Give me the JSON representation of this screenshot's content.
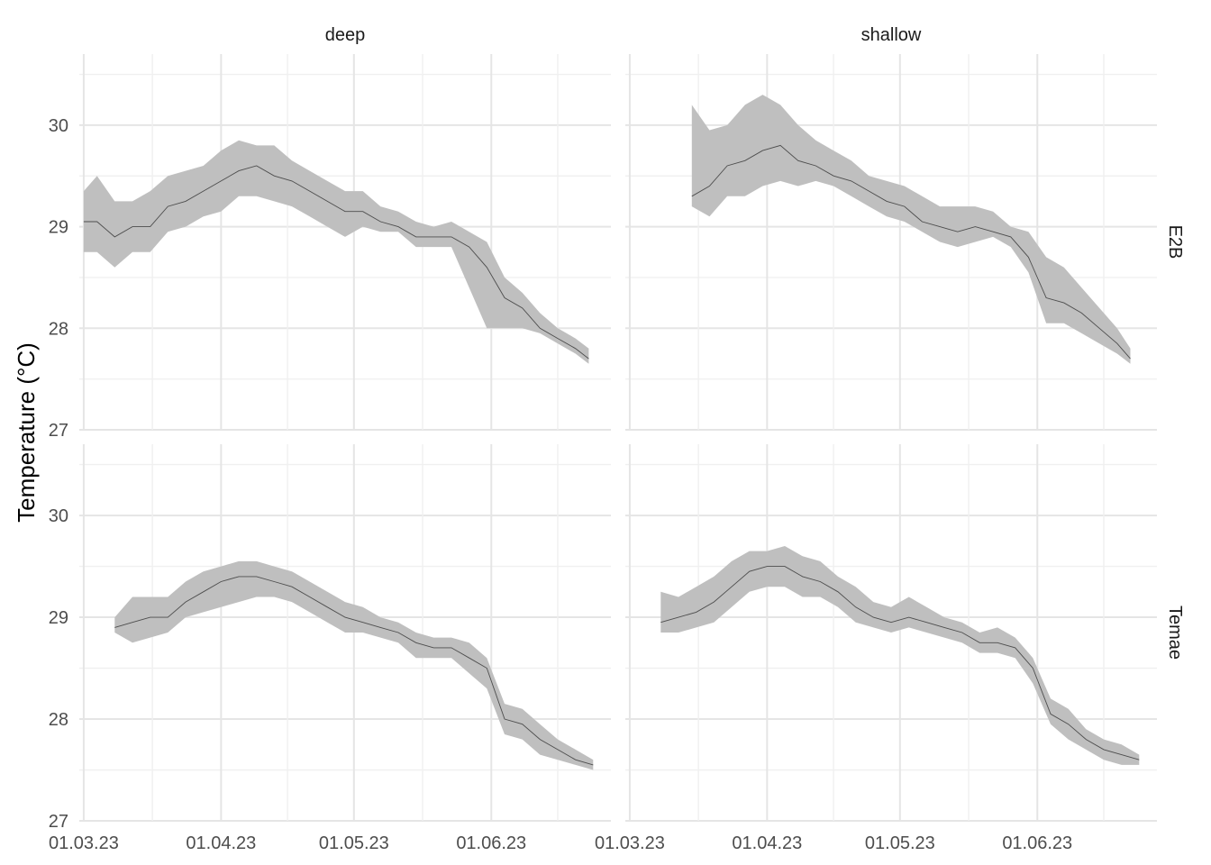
{
  "chart_data": {
    "type": "area",
    "ylabel": "Temperature (°C)",
    "xlabel": "",
    "x_ticks": [
      "2023-03-01",
      "2023-04-01",
      "2023-05-01",
      "2023-06-01"
    ],
    "x_tick_labels": [
      "01.03.23",
      "01.04.23",
      "01.05.23",
      "01.06.23"
    ],
    "x_range": [
      "2023-02-28",
      "2023-06-28"
    ],
    "y_ticks": [
      27,
      28,
      29,
      30
    ],
    "y_range": [
      27,
      30.7
    ],
    "grid": true,
    "colors": {
      "ribbon": "#bfbfbf",
      "line": "#4d4d4d"
    },
    "facet_columns": [
      "deep",
      "shallow"
    ],
    "facet_rows": [
      "E2B",
      "Temae"
    ],
    "panels": [
      {
        "row": "E2B",
        "col": "deep",
        "points": [
          [
            "2023-03-01",
            29.05,
            28.75,
            29.35
          ],
          [
            "2023-03-04",
            29.05,
            28.75,
            29.5
          ],
          [
            "2023-03-08",
            28.9,
            28.6,
            29.25
          ],
          [
            "2023-03-12",
            29.0,
            28.75,
            29.25
          ],
          [
            "2023-03-16",
            29.0,
            28.75,
            29.35
          ],
          [
            "2023-03-20",
            29.2,
            28.95,
            29.5
          ],
          [
            "2023-03-24",
            29.25,
            29.0,
            29.55
          ],
          [
            "2023-03-28",
            29.35,
            29.1,
            29.6
          ],
          [
            "2023-04-01",
            29.45,
            29.15,
            29.75
          ],
          [
            "2023-04-05",
            29.55,
            29.3,
            29.85
          ],
          [
            "2023-04-09",
            29.6,
            29.3,
            29.8
          ],
          [
            "2023-04-13",
            29.5,
            29.25,
            29.8
          ],
          [
            "2023-04-17",
            29.45,
            29.2,
            29.65
          ],
          [
            "2023-04-21",
            29.35,
            29.1,
            29.55
          ],
          [
            "2023-04-25",
            29.25,
            29.0,
            29.45
          ],
          [
            "2023-04-29",
            29.15,
            28.9,
            29.35
          ],
          [
            "2023-05-03",
            29.15,
            29.0,
            29.35
          ],
          [
            "2023-05-07",
            29.05,
            28.95,
            29.2
          ],
          [
            "2023-05-11",
            29.0,
            28.95,
            29.15
          ],
          [
            "2023-05-15",
            28.9,
            28.8,
            29.05
          ],
          [
            "2023-05-19",
            28.9,
            28.8,
            29.0
          ],
          [
            "2023-05-23",
            28.9,
            28.8,
            29.05
          ],
          [
            "2023-05-27",
            28.8,
            28.4,
            28.95
          ],
          [
            "2023-05-31",
            28.6,
            28.0,
            28.85
          ],
          [
            "2023-06-04",
            28.3,
            28.0,
            28.5
          ],
          [
            "2023-06-08",
            28.2,
            28.0,
            28.35
          ],
          [
            "2023-06-12",
            28.0,
            27.95,
            28.15
          ],
          [
            "2023-06-16",
            27.9,
            27.85,
            28.0
          ],
          [
            "2023-06-20",
            27.8,
            27.75,
            27.9
          ],
          [
            "2023-06-23",
            27.7,
            27.65,
            27.8
          ]
        ]
      },
      {
        "row": "E2B",
        "col": "shallow",
        "points": [
          [
            "2023-03-15",
            29.3,
            29.2,
            30.2
          ],
          [
            "2023-03-19",
            29.4,
            29.1,
            29.95
          ],
          [
            "2023-03-23",
            29.6,
            29.3,
            30.0
          ],
          [
            "2023-03-27",
            29.65,
            29.3,
            30.2
          ],
          [
            "2023-03-31",
            29.75,
            29.4,
            30.3
          ],
          [
            "2023-04-04",
            29.8,
            29.45,
            30.2
          ],
          [
            "2023-04-08",
            29.65,
            29.4,
            30.0
          ],
          [
            "2023-04-12",
            29.6,
            29.45,
            29.85
          ],
          [
            "2023-04-16",
            29.5,
            29.4,
            29.75
          ],
          [
            "2023-04-20",
            29.45,
            29.3,
            29.65
          ],
          [
            "2023-04-24",
            29.35,
            29.2,
            29.5
          ],
          [
            "2023-04-28",
            29.25,
            29.1,
            29.45
          ],
          [
            "2023-05-02",
            29.2,
            29.05,
            29.4
          ],
          [
            "2023-05-06",
            29.05,
            28.95,
            29.3
          ],
          [
            "2023-05-10",
            29.0,
            28.85,
            29.2
          ],
          [
            "2023-05-14",
            28.95,
            28.8,
            29.2
          ],
          [
            "2023-05-18",
            29.0,
            28.85,
            29.2
          ],
          [
            "2023-05-22",
            28.95,
            28.9,
            29.15
          ],
          [
            "2023-05-26",
            28.9,
            28.8,
            29.0
          ],
          [
            "2023-05-30",
            28.7,
            28.55,
            28.95
          ],
          [
            "2023-06-03",
            28.3,
            28.05,
            28.7
          ],
          [
            "2023-06-07",
            28.25,
            28.05,
            28.6
          ],
          [
            "2023-06-11",
            28.15,
            27.95,
            28.4
          ],
          [
            "2023-06-15",
            28.0,
            27.85,
            28.2
          ],
          [
            "2023-06-19",
            27.85,
            27.75,
            28.0
          ],
          [
            "2023-06-22",
            27.7,
            27.65,
            27.8
          ]
        ]
      },
      {
        "row": "Temae",
        "col": "deep",
        "points": [
          [
            "2023-03-08",
            28.9,
            28.85,
            29.0
          ],
          [
            "2023-03-12",
            28.95,
            28.75,
            29.2
          ],
          [
            "2023-03-16",
            29.0,
            28.8,
            29.2
          ],
          [
            "2023-03-20",
            29.0,
            28.85,
            29.2
          ],
          [
            "2023-03-24",
            29.15,
            29.0,
            29.35
          ],
          [
            "2023-03-28",
            29.25,
            29.05,
            29.45
          ],
          [
            "2023-04-01",
            29.35,
            29.1,
            29.5
          ],
          [
            "2023-04-05",
            29.4,
            29.15,
            29.55
          ],
          [
            "2023-04-09",
            29.4,
            29.2,
            29.55
          ],
          [
            "2023-04-13",
            29.35,
            29.2,
            29.5
          ],
          [
            "2023-04-17",
            29.3,
            29.15,
            29.45
          ],
          [
            "2023-04-21",
            29.2,
            29.05,
            29.35
          ],
          [
            "2023-04-25",
            29.1,
            28.95,
            29.25
          ],
          [
            "2023-04-29",
            29.0,
            28.85,
            29.15
          ],
          [
            "2023-05-03",
            28.95,
            28.85,
            29.1
          ],
          [
            "2023-05-07",
            28.9,
            28.8,
            29.0
          ],
          [
            "2023-05-11",
            28.85,
            28.75,
            28.95
          ],
          [
            "2023-05-15",
            28.75,
            28.6,
            28.85
          ],
          [
            "2023-05-19",
            28.7,
            28.6,
            28.8
          ],
          [
            "2023-05-23",
            28.7,
            28.6,
            28.8
          ],
          [
            "2023-05-27",
            28.6,
            28.45,
            28.75
          ],
          [
            "2023-05-31",
            28.5,
            28.3,
            28.6
          ],
          [
            "2023-06-04",
            28.0,
            27.85,
            28.15
          ],
          [
            "2023-06-08",
            27.95,
            27.8,
            28.1
          ],
          [
            "2023-06-12",
            27.8,
            27.65,
            27.95
          ],
          [
            "2023-06-16",
            27.7,
            27.6,
            27.8
          ],
          [
            "2023-06-20",
            27.6,
            27.55,
            27.7
          ],
          [
            "2023-06-24",
            27.55,
            27.5,
            27.6
          ]
        ]
      },
      {
        "row": "Temae",
        "col": "shallow",
        "points": [
          [
            "2023-03-08",
            28.95,
            28.85,
            29.25
          ],
          [
            "2023-03-12",
            29.0,
            28.85,
            29.2
          ],
          [
            "2023-03-16",
            29.05,
            28.9,
            29.3
          ],
          [
            "2023-03-20",
            29.15,
            28.95,
            29.4
          ],
          [
            "2023-03-24",
            29.3,
            29.1,
            29.55
          ],
          [
            "2023-03-28",
            29.45,
            29.25,
            29.65
          ],
          [
            "2023-04-01",
            29.5,
            29.3,
            29.65
          ],
          [
            "2023-04-05",
            29.5,
            29.3,
            29.7
          ],
          [
            "2023-04-09",
            29.4,
            29.2,
            29.6
          ],
          [
            "2023-04-13",
            29.35,
            29.2,
            29.55
          ],
          [
            "2023-04-17",
            29.25,
            29.1,
            29.4
          ],
          [
            "2023-04-21",
            29.1,
            28.95,
            29.3
          ],
          [
            "2023-04-25",
            29.0,
            28.9,
            29.15
          ],
          [
            "2023-04-29",
            28.95,
            28.85,
            29.1
          ],
          [
            "2023-05-03",
            29.0,
            28.9,
            29.2
          ],
          [
            "2023-05-07",
            28.95,
            28.85,
            29.1
          ],
          [
            "2023-05-11",
            28.9,
            28.8,
            29.0
          ],
          [
            "2023-05-15",
            28.85,
            28.75,
            28.95
          ],
          [
            "2023-05-19",
            28.75,
            28.65,
            28.85
          ],
          [
            "2023-05-23",
            28.75,
            28.65,
            28.9
          ],
          [
            "2023-05-27",
            28.7,
            28.6,
            28.8
          ],
          [
            "2023-05-31",
            28.5,
            28.35,
            28.6
          ],
          [
            "2023-06-04",
            28.05,
            27.95,
            28.2
          ],
          [
            "2023-06-08",
            27.95,
            27.8,
            28.1
          ],
          [
            "2023-06-12",
            27.8,
            27.7,
            27.9
          ],
          [
            "2023-06-16",
            27.7,
            27.6,
            27.8
          ],
          [
            "2023-06-20",
            27.65,
            27.55,
            27.75
          ],
          [
            "2023-06-24",
            27.6,
            27.55,
            27.65
          ]
        ]
      }
    ]
  }
}
